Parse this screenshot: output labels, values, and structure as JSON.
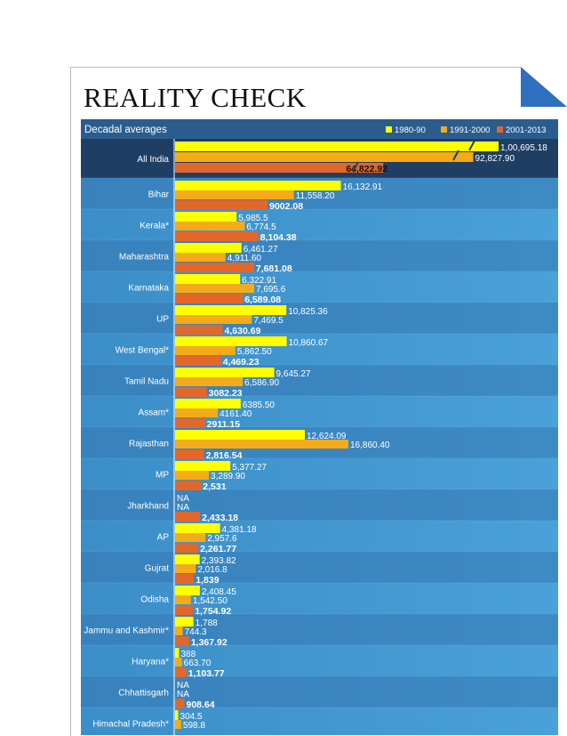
{
  "header": {
    "title": "REALITY CHECK",
    "subtitle": "Decadal averages"
  },
  "colors": {
    "page_bg": "#ffffff",
    "panel_blue": "#3b8ec8",
    "panel_blue_light": "#4aa0d8",
    "band_dark": "#3479b4",
    "header_bar": "#2a5d8e",
    "all_india_row": "#1f3e63",
    "y1980": "#ffff00",
    "y1991": "#f3ab1b",
    "y2001": "#e2672b",
    "corner_fold": "#2f6fc0"
  },
  "chart_data": {
    "type": "bar",
    "orientation": "horizontal",
    "subtitle": "Decadal averages",
    "legend_position": "top-right",
    "series": [
      {
        "name": "1980-90",
        "color": "#ffff00"
      },
      {
        "name": "1991-2000",
        "color": "#f3ab1b"
      },
      {
        "name": "2001-2013",
        "color": "#e2672b"
      }
    ],
    "categories": [
      "All India",
      "Bihar",
      "Kerala*",
      "Maharashtra",
      "Karnataka",
      "UP",
      "West Bengal*",
      "Tamil Nadu",
      "Assam*",
      "Rajasthan",
      "MP",
      "Jharkhand",
      "AP",
      "Gujrat",
      "Odisha",
      "Jammu and Kashmir*",
      "Haryana*",
      "Chhattisgarh",
      "Himachal Pradesh*"
    ],
    "rows": [
      {
        "values": [
          100695.18,
          92827.9,
          64822.92
        ],
        "labels": [
          "1,00,695.18",
          "92,827.90",
          "64,822.92"
        ]
      },
      {
        "values": [
          16132.91,
          11558.2,
          9002.08
        ],
        "labels": [
          "16,132.91",
          "11,558.20",
          "9002.08"
        ]
      },
      {
        "values": [
          5985.5,
          6774.5,
          8104.38
        ],
        "labels": [
          "5,985.5",
          "6,774.5",
          "8,104.38"
        ]
      },
      {
        "values": [
          6461.27,
          4911.6,
          7681.08
        ],
        "labels": [
          "6,461.27",
          "4,911.60",
          "7,681.08"
        ]
      },
      {
        "values": [
          6322.91,
          7695.6,
          6589.08
        ],
        "labels": [
          "6,322.91",
          "7,695.6",
          "6,589.08"
        ]
      },
      {
        "values": [
          10825.36,
          7469.5,
          4630.69
        ],
        "labels": [
          "10,825.36",
          "7,469.5",
          "4,630.69"
        ]
      },
      {
        "values": [
          10860.67,
          5862.5,
          4469.23
        ],
        "labels": [
          "10,860.67",
          "5,862.50",
          "4,469.23"
        ]
      },
      {
        "values": [
          9645.27,
          6586.9,
          3082.23
        ],
        "labels": [
          "9,645.27",
          "6,586.90",
          "3082.23"
        ]
      },
      {
        "values": [
          6385.5,
          4161.4,
          2911.15
        ],
        "labels": [
          "6385.50",
          "4161.40",
          "2911.15"
        ]
      },
      {
        "values": [
          12624.09,
          16860.4,
          2816.54
        ],
        "labels": [
          "12,624.09",
          "16,860.40",
          "2,816.54"
        ]
      },
      {
        "values": [
          5377.27,
          3289.9,
          2531
        ],
        "labels": [
          "5,377.27",
          "3,289.90",
          "2,531"
        ]
      },
      {
        "values": [
          null,
          null,
          2433.18
        ],
        "labels": [
          "NA",
          "NA",
          "2,433.18"
        ]
      },
      {
        "values": [
          4381.18,
          2957.6,
          2261.77
        ],
        "labels": [
          "4,381.18",
          "2,957.6",
          "2,261.77"
        ]
      },
      {
        "values": [
          2393.82,
          2016.8,
          1839
        ],
        "labels": [
          "2,393.82",
          "2,016.8",
          "1,839"
        ]
      },
      {
        "values": [
          2408.45,
          1542.5,
          1754.92
        ],
        "labels": [
          "2,408.45",
          "1,542.50",
          "1,754.92"
        ]
      },
      {
        "values": [
          1788,
          744.3,
          1367.92
        ],
        "labels": [
          "1,788",
          "744.3",
          "1,367.92"
        ]
      },
      {
        "values": [
          388,
          663.7,
          1103.77
        ],
        "labels": [
          "388",
          "663.70",
          "1,103.77"
        ]
      },
      {
        "values": [
          null,
          null,
          908.64
        ],
        "labels": [
          "NA",
          "NA",
          "908.64"
        ]
      },
      {
        "values": [
          304.5,
          598.8,
          null
        ],
        "labels": [
          "304.5",
          "598.8",
          ""
        ]
      }
    ]
  }
}
